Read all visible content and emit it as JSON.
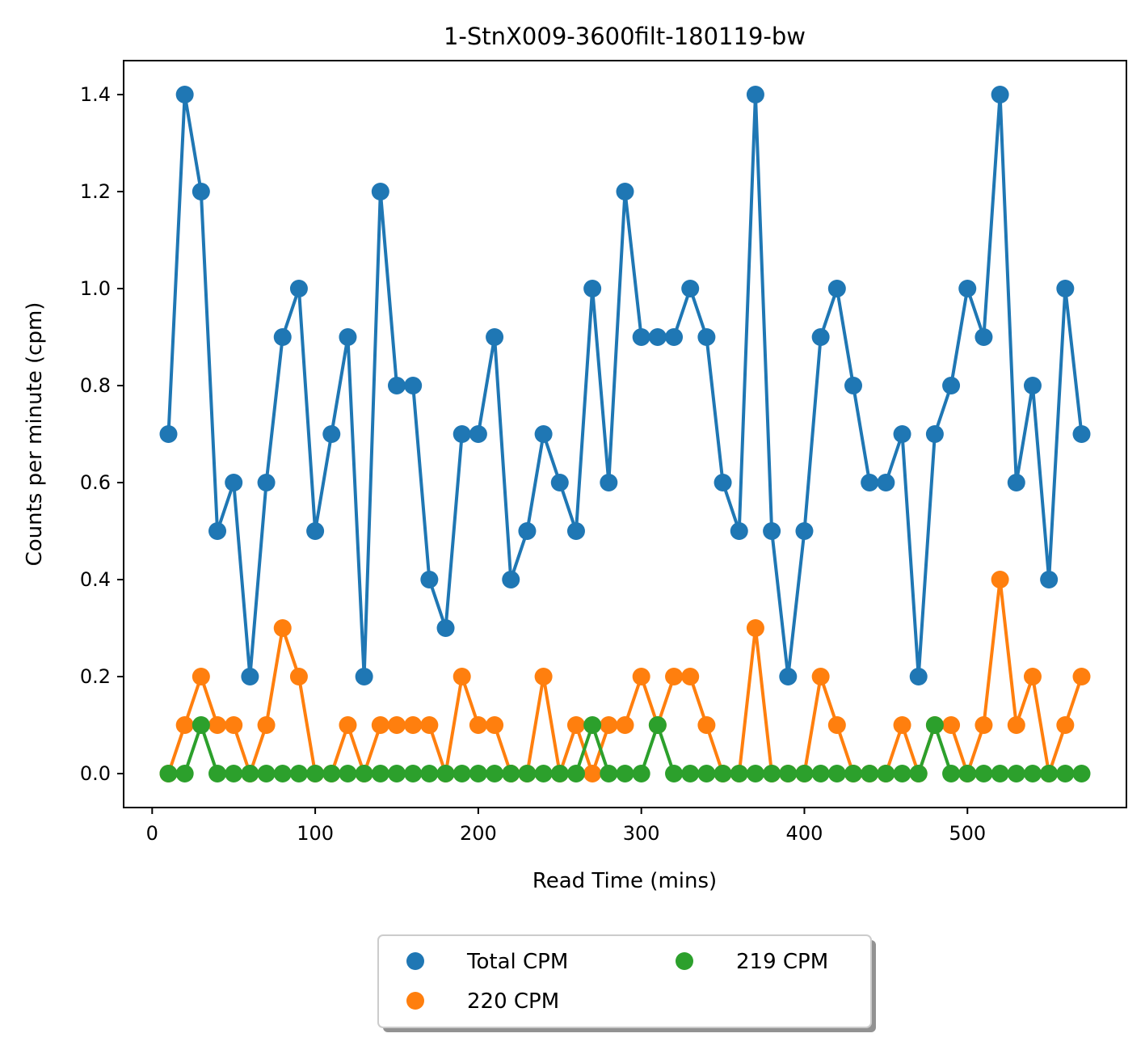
{
  "chart_data": {
    "type": "line",
    "title": "1-StnX009-3600filt-180119-bw",
    "xlabel": "Read Time (mins)",
    "ylabel": "Counts per minute (cpm)",
    "xlim": [
      -17.5,
      597.5
    ],
    "ylim": [
      -0.07,
      1.47
    ],
    "xticks": [
      0,
      100,
      200,
      300,
      400,
      500
    ],
    "xtick_labels": [
      "0",
      "100",
      "200",
      "300",
      "400",
      "500"
    ],
    "yticks": [
      0.0,
      0.2,
      0.4,
      0.6,
      0.8,
      1.0,
      1.2,
      1.4
    ],
    "ytick_labels": [
      "0.0",
      "0.2",
      "0.4",
      "0.6",
      "0.8",
      "1.0",
      "1.2",
      "1.4"
    ],
    "grid": false,
    "legend_placement": "bottom-center, below plot, 2 columns",
    "x": [
      10,
      20,
      30,
      40,
      50,
      60,
      70,
      80,
      90,
      100,
      110,
      120,
      130,
      140,
      150,
      160,
      170,
      180,
      190,
      200,
      210,
      220,
      230,
      240,
      250,
      260,
      270,
      280,
      290,
      300,
      310,
      320,
      330,
      340,
      350,
      360,
      370,
      380,
      390,
      400,
      410,
      420,
      430,
      440,
      450,
      460,
      470,
      480,
      490,
      500,
      510,
      520,
      530,
      540,
      550,
      560,
      570
    ],
    "series": [
      {
        "name": "Total CPM",
        "color": "#1f77b4",
        "values": [
          0.7,
          1.4,
          1.2,
          0.5,
          0.6,
          0.2,
          0.6,
          0.9,
          1.0,
          0.5,
          0.7,
          0.9,
          0.2,
          1.2,
          0.8,
          0.8,
          0.4,
          0.3,
          0.7,
          0.7,
          0.9,
          0.4,
          0.5,
          0.7,
          0.6,
          0.5,
          1.0,
          0.6,
          1.2,
          0.9,
          0.9,
          0.9,
          1.0,
          0.9,
          0.6,
          0.5,
          1.4,
          0.5,
          0.2,
          0.5,
          0.9,
          1.0,
          0.8,
          0.6,
          0.6,
          0.7,
          0.2,
          0.7,
          0.8,
          1.0,
          0.9,
          1.4,
          0.6,
          0.8,
          0.4,
          1.0,
          0.7
        ]
      },
      {
        "name": "220 CPM",
        "color": "#ff7f0e",
        "values": [
          0.0,
          0.1,
          0.2,
          0.1,
          0.1,
          0.0,
          0.1,
          0.3,
          0.2,
          0.0,
          0.0,
          0.1,
          0.0,
          0.1,
          0.1,
          0.1,
          0.1,
          0.0,
          0.2,
          0.1,
          0.1,
          0.0,
          0.0,
          0.2,
          0.0,
          0.1,
          0.0,
          0.1,
          0.1,
          0.2,
          0.1,
          0.2,
          0.2,
          0.1,
          0.0,
          0.0,
          0.3,
          0.0,
          0.0,
          0.0,
          0.2,
          0.1,
          0.0,
          0.0,
          0.0,
          0.1,
          0.0,
          0.1,
          0.1,
          0.0,
          0.1,
          0.4,
          0.1,
          0.2,
          0.0,
          0.1,
          0.2
        ]
      },
      {
        "name": "219 CPM",
        "color": "#2ca02c",
        "values": [
          0.0,
          0.0,
          0.1,
          0.0,
          0.0,
          0.0,
          0.0,
          0.0,
          0.0,
          0.0,
          0.0,
          0.0,
          0.0,
          0.0,
          0.0,
          0.0,
          0.0,
          0.0,
          0.0,
          0.0,
          0.0,
          0.0,
          0.0,
          0.0,
          0.0,
          0.0,
          0.1,
          0.0,
          0.0,
          0.0,
          0.1,
          0.0,
          0.0,
          0.0,
          0.0,
          0.0,
          0.0,
          0.0,
          0.0,
          0.0,
          0.0,
          0.0,
          0.0,
          0.0,
          0.0,
          0.0,
          0.0,
          0.1,
          0.0,
          0.0,
          0.0,
          0.0,
          0.0,
          0.0,
          0.0,
          0.0,
          0.0
        ]
      }
    ],
    "legend_order": [
      "Total CPM",
      "220 CPM",
      "219 CPM"
    ]
  }
}
